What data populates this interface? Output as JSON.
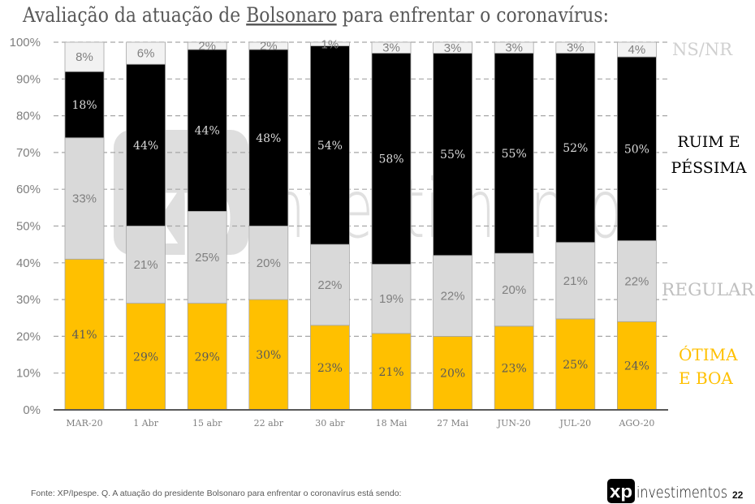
{
  "title": {
    "prefix": "Avaliação da atuação de ",
    "emphasis": "Bolsonaro",
    "suffix": " para enfrentar o coronavírus:"
  },
  "chart_data": {
    "type": "bar",
    "stacked": true,
    "normalized": true,
    "title": "Avaliação da atuação de Bolsonaro para enfrentar o coronavírus:",
    "xlabel": "",
    "ylabel": "",
    "ylim": [
      0,
      100
    ],
    "yticks": [
      "0%",
      "10%",
      "20%",
      "30%",
      "40%",
      "50%",
      "60%",
      "70%",
      "80%",
      "90%",
      "100%"
    ],
    "grid": true,
    "legend": "right",
    "categories": [
      "MAR-20",
      "1 Abr",
      "15 abr",
      "22 abr",
      "30 abr",
      "18 Mai",
      "27 Mai",
      "JUN-20",
      "JUL-20",
      "AGO-20"
    ],
    "series": [
      {
        "key": "otima-boa",
        "name": "ÓTIMA E BOA",
        "color": "#FFC000",
        "values": [
          41,
          29,
          29,
          30,
          23,
          21,
          20,
          23,
          25,
          24
        ],
        "labels": [
          "41%",
          "29%",
          "29%",
          "30%",
          "23%",
          "21%",
          "20%",
          "23%",
          "25%",
          "24%"
        ]
      },
      {
        "key": "regular",
        "name": "REGULAR",
        "color": "#D9D9D9",
        "values": [
          33,
          21,
          25,
          20,
          22,
          19,
          22,
          20,
          21,
          22
        ],
        "labels": [
          "33%",
          "21%",
          "25%",
          "20%",
          "22%",
          "19%",
          "22%",
          "20%",
          "21%",
          "22%"
        ]
      },
      {
        "key": "ruim-pessima",
        "name": "RUIM E PÉSSIMA",
        "color": "#000000",
        "values": [
          18,
          44,
          44,
          48,
          54,
          58,
          55,
          55,
          52,
          50
        ],
        "labels": [
          "18%",
          "44%",
          "44%",
          "48%",
          "54%",
          "58%",
          "55%",
          "55%",
          "52%",
          "50%"
        ]
      },
      {
        "key": "ns-nr",
        "name": "NS/NR",
        "color": "#F2F2F2",
        "values": [
          8,
          6,
          2,
          2,
          1,
          3,
          3,
          3,
          3,
          4
        ],
        "labels": [
          "8%",
          "6%",
          "2%",
          "2%",
          "1%",
          "3%",
          "3%",
          "3%",
          "3%",
          "4%"
        ]
      }
    ]
  },
  "legend": {
    "ns_nr": [
      "NS/NR"
    ],
    "ruim_pessima": [
      "RUIM E",
      "PÉSSIMA"
    ],
    "regular": [
      "REGULAR"
    ],
    "otima_boa": [
      "ÓTIMA",
      "E BOA"
    ]
  },
  "watermark": {
    "mark": "xp",
    "text": "investimentos"
  },
  "footer": {
    "source": "Fonte: XP/Ipespe. Q. A atuação do presidente Bolsonaro para enfrentar o coronavírus está sendo:",
    "logo_mark": "xp",
    "logo_text": "investimentos",
    "page_number": "22"
  }
}
